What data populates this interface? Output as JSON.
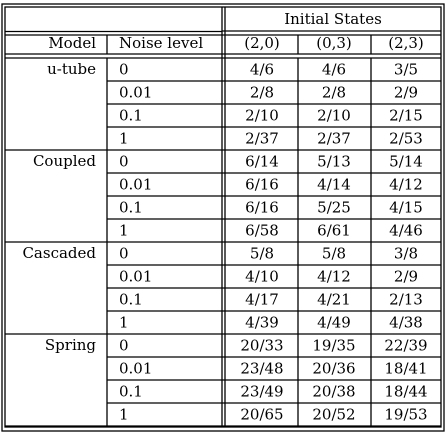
{
  "table": {
    "group_header": "Initial States",
    "col_headers": [
      "Model",
      "Noise level",
      "(2,0)",
      "(0,3)",
      "(2,3)"
    ],
    "groups": [
      {
        "model": "u-tube",
        "rows": [
          {
            "noise": "0",
            "values": [
              "4/6",
              "4/6",
              "3/5"
            ]
          },
          {
            "noise": "0.01",
            "values": [
              "2/8",
              "2/8",
              "2/9"
            ]
          },
          {
            "noise": "0.1",
            "values": [
              "2/10",
              "2/10",
              "2/15"
            ]
          },
          {
            "noise": "1",
            "values": [
              "2/37",
              "2/37",
              "2/53"
            ]
          }
        ]
      },
      {
        "model": "Coupled",
        "rows": [
          {
            "noise": "0",
            "values": [
              "6/14",
              "5/13",
              "5/14"
            ]
          },
          {
            "noise": "0.01",
            "values": [
              "6/16",
              "4/14",
              "4/12"
            ]
          },
          {
            "noise": "0.1",
            "values": [
              "6/16",
              "5/25",
              "4/15"
            ]
          },
          {
            "noise": "1",
            "values": [
              "6/58",
              "6/61",
              "4/46"
            ]
          }
        ]
      },
      {
        "model": "Cascaded",
        "rows": [
          {
            "noise": "0",
            "values": [
              "5/8",
              "5/8",
              "3/8"
            ]
          },
          {
            "noise": "0.01",
            "values": [
              "4/10",
              "4/12",
              "2/9"
            ]
          },
          {
            "noise": "0.1",
            "values": [
              "4/17",
              "4/21",
              "2/13"
            ]
          },
          {
            "noise": "1",
            "values": [
              "4/39",
              "4/49",
              "4/38"
            ]
          }
        ]
      },
      {
        "model": "Spring",
        "rows": [
          {
            "noise": "0",
            "values": [
              "20/33",
              "19/35",
              "22/39"
            ]
          },
          {
            "noise": "0.01",
            "values": [
              "23/48",
              "20/36",
              "18/41"
            ]
          },
          {
            "noise": "0.1",
            "values": [
              "23/49",
              "20/38",
              "18/44"
            ]
          },
          {
            "noise": "1",
            "values": [
              "20/65",
              "20/52",
              "19/53"
            ]
          }
        ]
      }
    ]
  }
}
